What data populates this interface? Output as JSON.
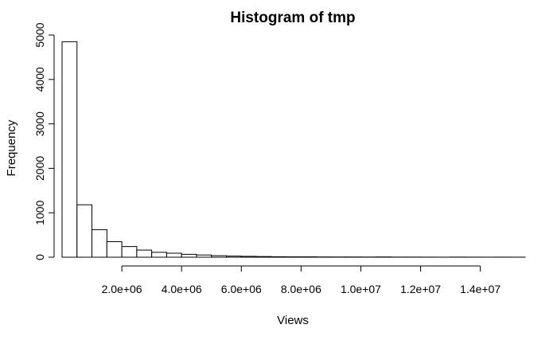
{
  "chart_data": {
    "type": "bar",
    "title": "Histogram of tmp",
    "xlabel": "Views",
    "ylabel": "Frequency",
    "xlim": [
      0,
      15500000
    ],
    "ylim": [
      0,
      5000
    ],
    "bin_width": 500000,
    "bins": [
      {
        "x0": 0,
        "x1": 500000,
        "count": 4850
      },
      {
        "x0": 500000,
        "x1": 1000000,
        "count": 1180
      },
      {
        "x0": 1000000,
        "x1": 1500000,
        "count": 620
      },
      {
        "x0": 1500000,
        "x1": 2000000,
        "count": 350
      },
      {
        "x0": 2000000,
        "x1": 2500000,
        "count": 240
      },
      {
        "x0": 2500000,
        "x1": 3000000,
        "count": 160
      },
      {
        "x0": 3000000,
        "x1": 3500000,
        "count": 110
      },
      {
        "x0": 3500000,
        "x1": 4000000,
        "count": 90
      },
      {
        "x0": 4000000,
        "x1": 4500000,
        "count": 65
      },
      {
        "x0": 4500000,
        "x1": 5000000,
        "count": 50
      },
      {
        "x0": 5000000,
        "x1": 5500000,
        "count": 35
      },
      {
        "x0": 5500000,
        "x1": 6000000,
        "count": 25
      },
      {
        "x0": 6000000,
        "x1": 6500000,
        "count": 20
      },
      {
        "x0": 6500000,
        "x1": 7000000,
        "count": 15
      },
      {
        "x0": 7000000,
        "x1": 7500000,
        "count": 10
      },
      {
        "x0": 7500000,
        "x1": 8000000,
        "count": 8
      },
      {
        "x0": 8000000,
        "x1": 8500000,
        "count": 8
      },
      {
        "x0": 8500000,
        "x1": 9000000,
        "count": 6
      },
      {
        "x0": 9000000,
        "x1": 9500000,
        "count": 5
      },
      {
        "x0": 9500000,
        "x1": 10000000,
        "count": 5
      },
      {
        "x0": 10000000,
        "x1": 10500000,
        "count": 4
      },
      {
        "x0": 10500000,
        "x1": 11000000,
        "count": 6
      },
      {
        "x0": 11000000,
        "x1": 11500000,
        "count": 3
      },
      {
        "x0": 11500000,
        "x1": 12000000,
        "count": 3
      },
      {
        "x0": 12000000,
        "x1": 12500000,
        "count": 2
      },
      {
        "x0": 12500000,
        "x1": 13000000,
        "count": 1
      },
      {
        "x0": 13000000,
        "x1": 13500000,
        "count": 3
      },
      {
        "x0": 13500000,
        "x1": 14000000,
        "count": 2
      },
      {
        "x0": 14000000,
        "x1": 14500000,
        "count": 1
      },
      {
        "x0": 14500000,
        "x1": 15000000,
        "count": 2
      },
      {
        "x0": 15000000,
        "x1": 15500000,
        "count": 1
      }
    ],
    "x_ticks": [
      {
        "value": 2000000,
        "label": "2.0e+06"
      },
      {
        "value": 4000000,
        "label": "4.0e+06"
      },
      {
        "value": 6000000,
        "label": "6.0e+06"
      },
      {
        "value": 8000000,
        "label": "8.0e+06"
      },
      {
        "value": 10000000,
        "label": "1.0e+07"
      },
      {
        "value": 12000000,
        "label": "1.2e+07"
      },
      {
        "value": 14000000,
        "label": "1.4e+07"
      }
    ],
    "y_ticks": [
      {
        "value": 0,
        "label": "0"
      },
      {
        "value": 1000,
        "label": "1000"
      },
      {
        "value": 2000,
        "label": "2000"
      },
      {
        "value": 3000,
        "label": "3000"
      },
      {
        "value": 4000,
        "label": "4000"
      },
      {
        "value": 5000,
        "label": "5000"
      }
    ],
    "grid": false,
    "legend": "none"
  }
}
